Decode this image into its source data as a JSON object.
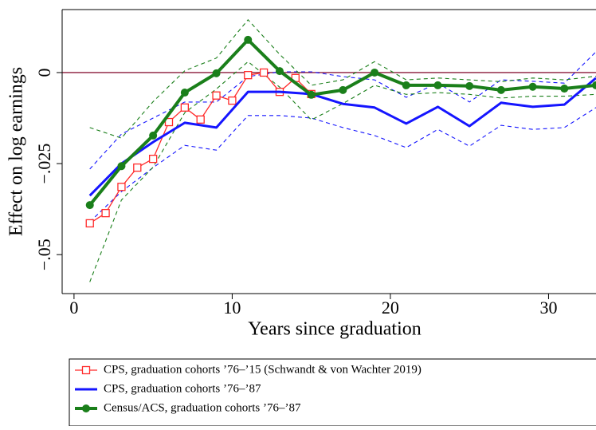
{
  "chart_data": {
    "type": "line",
    "xlabel": "Years since graduation",
    "ylabel": "Effect on log earnings",
    "xlim": [
      -0.75,
      33
    ],
    "ylim": [
      -0.0607,
      0.0173
    ],
    "xticks": [
      0,
      10,
      20,
      30
    ],
    "yticks": [
      {
        "value": -0.05,
        "label": "−.05"
      },
      {
        "value": -0.025,
        "label": "−.025"
      },
      0
    ],
    "zero_line_color": "#8b1a3a",
    "series": [
      {
        "name": "CPS, graduation cohorts ’76–’15 (Schwandt & von Wachter 2019)",
        "color": "#ff2a2a",
        "marker": "square",
        "x": [
          1,
          2,
          3,
          4,
          5,
          6,
          7,
          8,
          9,
          10,
          11,
          12,
          13,
          14,
          15
        ],
        "values": [
          -0.0414,
          -0.0386,
          -0.0314,
          -0.0261,
          -0.0237,
          -0.0136,
          -0.0096,
          -0.0129,
          -0.0063,
          -0.0077,
          -0.0007,
          0,
          -0.0053,
          -0.0015,
          -0.0059
        ]
      },
      {
        "name": "CPS, graduation cohorts ’76–’87",
        "color": "#1515ff",
        "marker": "none",
        "x": [
          1,
          3,
          5,
          7,
          9,
          11,
          13,
          15,
          17,
          19,
          21,
          23,
          25,
          27,
          29,
          31,
          33
        ],
        "values": [
          -0.0338,
          -0.025,
          -0.0191,
          -0.0138,
          -0.0151,
          -0.0053,
          -0.0053,
          -0.0059,
          -0.0086,
          -0.0096,
          -0.014,
          -0.0094,
          -0.0147,
          -0.0083,
          -0.0094,
          -0.0088,
          -0.0015
        ],
        "ci_upper": [
          -0.0265,
          -0.0169,
          -0.0125,
          -0.0081,
          -0.0081,
          -0.0011,
          0.0002,
          0.0002,
          -0.0011,
          -0.002,
          -0.0068,
          -0.0029,
          -0.0081,
          -0.002,
          -0.0024,
          -0.0029,
          0.0057
        ],
        "ci_lower": [
          -0.041,
          -0.0327,
          -0.0261,
          -0.02,
          -0.0213,
          -0.0118,
          -0.0118,
          -0.0125,
          -0.0151,
          -0.0173,
          -0.0206,
          -0.0156,
          -0.0202,
          -0.0145,
          -0.0156,
          -0.0151,
          -0.0096
        ]
      },
      {
        "name": "Census/ACS, graduation cohorts ’76–’87",
        "color": "#1a7f1a",
        "marker": "circle",
        "x": [
          1,
          3,
          5,
          7,
          9,
          11,
          13,
          15,
          17,
          19,
          21,
          23,
          25,
          27,
          29,
          31,
          33
        ],
        "values": [
          -0.0364,
          -0.0257,
          -0.0173,
          -0.0055,
          -0.0002,
          0.009,
          0.0004,
          -0.0061,
          -0.0048,
          0,
          -0.0035,
          -0.0035,
          -0.0037,
          -0.0048,
          -0.0039,
          -0.0044,
          -0.0035
        ],
        "ci_upper": [
          -0.0151,
          -0.018,
          -0.008,
          0.0005,
          0.004,
          0.0145,
          0.005,
          -0.0035,
          -0.002,
          0.003,
          -0.002,
          -0.0015,
          -0.002,
          -0.0025,
          -0.0015,
          -0.002,
          -0.001
        ],
        "ci_lower": [
          -0.0575,
          -0.035,
          -0.026,
          -0.011,
          -0.0045,
          0.003,
          -0.004,
          -0.013,
          -0.0085,
          -0.0035,
          -0.006,
          -0.0055,
          -0.006,
          -0.007,
          -0.0065,
          -0.0065,
          -0.006
        ]
      }
    ]
  }
}
